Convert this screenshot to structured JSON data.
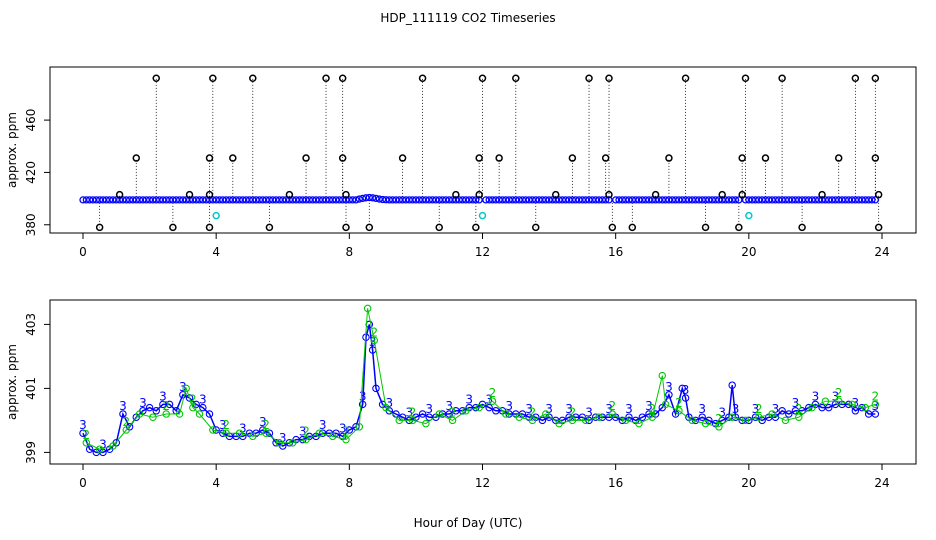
{
  "title": "HDP_111119  CO2 Timeseries",
  "xlabel": "Hour of Day (UTC)",
  "colors": {
    "blue": "#0000ff",
    "green": "#00c800",
    "cyan": "#00c8c8",
    "black": "#000000"
  },
  "chart_data": [
    {
      "type": "scatter",
      "panel": "top",
      "ylabel": "approx. ppm",
      "xlim": [
        0,
        24
      ],
      "ylim": [
        376,
        496
      ],
      "x_ticks": [
        "0",
        "4",
        "8",
        "12",
        "16",
        "20",
        "24"
      ],
      "y_ticks": [
        "380",
        "420",
        "460"
      ],
      "y_tick_values": [
        380,
        420,
        460
      ],
      "baseline": 399,
      "outliers_high": [
        2.2,
        3.9,
        5.1,
        7.3,
        7.8,
        10.2,
        12.0,
        13.0,
        15.2,
        15.8,
        18.1,
        19.9,
        21.0,
        23.2,
        23.8
      ],
      "outliers_431": [
        1.6,
        3.8,
        4.5,
        6.7,
        7.8,
        9.6,
        11.9,
        12.5,
        14.7,
        15.7,
        17.6,
        19.8,
        20.5,
        22.7,
        23.8
      ],
      "outliers_403": [
        1.1,
        3.2,
        3.8,
        6.2,
        7.9,
        11.2,
        11.9,
        14.2,
        15.8,
        17.2,
        19.2,
        19.8,
        22.2,
        23.9
      ],
      "outliers_low": [
        0.5,
        2.7,
        3.8,
        5.6,
        7.9,
        8.6,
        10.7,
        11.8,
        13.6,
        15.9,
        16.5,
        18.7,
        19.7,
        21.6,
        23.9
      ],
      "cyan_points": [
        [
          4.0,
          387
        ],
        [
          12.0,
          387
        ],
        [
          20.0,
          387
        ]
      ]
    },
    {
      "type": "line",
      "panel": "bottom",
      "ylabel": "approx. ppm",
      "xlim": [
        0,
        24
      ],
      "ylim": [
        398.7,
        403.7
      ],
      "x_ticks": [
        "0",
        "4",
        "8",
        "12",
        "16",
        "20",
        "24"
      ],
      "y_ticks": [
        "399",
        "401",
        "403"
      ],
      "y_tick_values": [
        399,
        401,
        403
      ],
      "markers": [
        "3",
        "2"
      ],
      "series": [
        {
          "x": [
            0.0,
            0.2,
            0.4,
            0.6,
            0.8,
            1.0,
            1.2,
            1.4,
            1.6,
            1.8,
            2.0,
            2.2,
            2.4,
            2.6,
            2.8,
            3.0,
            3.2,
            3.4,
            3.6,
            3.8,
            4.0,
            4.2,
            4.4,
            4.6,
            4.8,
            5.0,
            5.2,
            5.4,
            5.6,
            5.8,
            6.0,
            6.2,
            6.4,
            6.6,
            6.8,
            7.0,
            7.2,
            7.4,
            7.6,
            7.8,
            8.0,
            8.2,
            8.4,
            8.5,
            8.6,
            8.7,
            8.8,
            9.0,
            9.2,
            9.4,
            9.6,
            9.8,
            10.0,
            10.2,
            10.4,
            10.6,
            10.8,
            11.0,
            11.2,
            11.4,
            11.6,
            11.8,
            12.0,
            12.2,
            12.4,
            12.6,
            12.8,
            13.0,
            13.2,
            13.4,
            13.6,
            13.8,
            14.0,
            14.2,
            14.4,
            14.6,
            14.8,
            15.0,
            15.2,
            15.4,
            15.6,
            15.8,
            16.0,
            16.2,
            16.4,
            16.6,
            16.8,
            17.0,
            17.2,
            17.4,
            17.6,
            17.8,
            18.0,
            18.1,
            18.2,
            18.4,
            18.6,
            18.8,
            19.0,
            19.2,
            19.4,
            19.5,
            19.6,
            19.8,
            20.0,
            20.2,
            20.4,
            20.6,
            20.8,
            21.0,
            21.2,
            21.4,
            21.6,
            21.8,
            22.0,
            22.2,
            22.4,
            22.6,
            22.8,
            23.0,
            23.2,
            23.4,
            23.6,
            23.8
          ],
          "y": [
            399.6,
            399.1,
            399.0,
            399.0,
            399.1,
            399.3,
            400.2,
            399.8,
            400.1,
            400.3,
            400.4,
            400.3,
            400.5,
            400.5,
            400.3,
            400.8,
            400.7,
            400.5,
            400.4,
            400.2,
            399.7,
            399.6,
            399.5,
            399.5,
            399.5,
            399.6,
            399.6,
            399.7,
            399.6,
            399.3,
            399.2,
            399.3,
            399.4,
            399.4,
            399.5,
            399.5,
            399.6,
            399.6,
            399.6,
            399.5,
            399.7,
            399.8,
            400.5,
            402.6,
            403.0,
            402.2,
            401.0,
            400.5,
            400.3,
            400.2,
            400.1,
            400.0,
            400.1,
            400.2,
            400.1,
            400.1,
            400.2,
            400.2,
            400.3,
            400.3,
            400.4,
            400.4,
            400.5,
            400.4,
            400.3,
            400.3,
            400.2,
            400.2,
            400.2,
            400.1,
            400.1,
            400.0,
            400.1,
            400.0,
            400.0,
            400.1,
            400.1,
            400.1,
            400.0,
            400.1,
            400.1,
            400.1,
            400.1,
            400.0,
            400.1,
            400.0,
            400.1,
            400.2,
            400.2,
            400.4,
            400.8,
            400.2,
            401.0,
            400.7,
            400.1,
            400.0,
            400.1,
            400.0,
            399.9,
            400.0,
            400.1,
            401.1,
            400.1,
            400.0,
            400.0,
            400.1,
            400.0,
            400.1,
            400.1,
            400.3,
            400.2,
            400.3,
            400.3,
            400.4,
            400.5,
            400.4,
            400.4,
            400.5,
            400.5,
            400.5,
            400.3,
            400.4,
            400.2,
            400.2
          ],
          "color": "#0000ff",
          "marker": "3"
        },
        {
          "x": [
            0.1,
            0.5,
            0.9,
            1.3,
            1.7,
            2.1,
            2.5,
            2.9,
            3.1,
            3.3,
            3.5,
            3.9,
            4.3,
            4.7,
            5.1,
            5.5,
            5.9,
            6.3,
            6.7,
            7.1,
            7.5,
            7.9,
            8.3,
            8.55,
            8.75,
            9.1,
            9.5,
            9.9,
            10.3,
            10.7,
            11.1,
            11.5,
            11.9,
            12.3,
            12.7,
            13.1,
            13.5,
            13.9,
            14.3,
            14.7,
            15.1,
            15.5,
            15.9,
            16.3,
            16.7,
            17.1,
            17.4,
            17.5,
            17.9,
            18.3,
            18.7,
            19.1,
            19.5,
            19.9,
            20.3,
            20.7,
            21.1,
            21.5,
            21.9,
            22.3,
            22.7,
            23.1,
            23.5,
            23.8
          ],
          "y": [
            399.3,
            399.1,
            399.2,
            399.7,
            400.2,
            400.1,
            400.2,
            400.2,
            401.0,
            400.4,
            400.2,
            399.7,
            399.6,
            399.6,
            399.5,
            399.6,
            399.3,
            399.3,
            399.4,
            399.6,
            399.5,
            399.4,
            399.8,
            403.5,
            402.5,
            400.4,
            400.0,
            400.0,
            399.9,
            400.2,
            400.0,
            400.3,
            400.4,
            400.6,
            400.2,
            400.1,
            400.0,
            400.2,
            399.9,
            400.0,
            400.0,
            400.1,
            400.2,
            400.0,
            399.9,
            400.1,
            401.4,
            400.5,
            400.3,
            400.0,
            399.9,
            399.8,
            400.1,
            400.0,
            400.1,
            400.2,
            400.0,
            400.1,
            400.4,
            400.6,
            400.6,
            400.5,
            400.4,
            400.5
          ],
          "color": "#00c800",
          "marker": "2"
        }
      ]
    }
  ]
}
